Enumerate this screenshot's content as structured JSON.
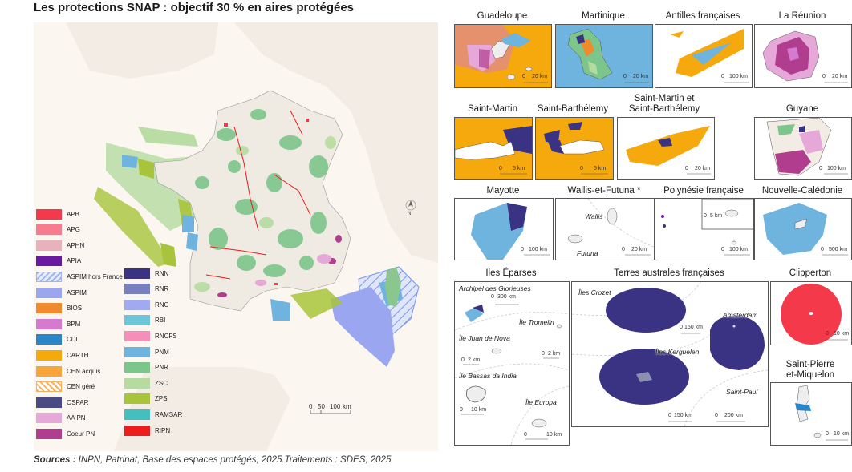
{
  "title": "Les protections SNAP : objectif 30 % en aires protégées",
  "sources": {
    "label": "Sources :",
    "text": "INPN, Patrinat, Base des espaces protégés, 2025.Traitements : SDES, 2025"
  },
  "main_map": {
    "north_label": "N",
    "scale": {
      "zero": "0",
      "mid": "50",
      "max": "100",
      "unit": "km"
    }
  },
  "legend": {
    "column1": [
      {
        "label": "APB",
        "color": "#f43a4a"
      },
      {
        "label": "APG",
        "color": "#f77d8e"
      },
      {
        "label": "APHN",
        "color": "#e7b2bb"
      },
      {
        "label": "APIA",
        "color": "#6a1aa0"
      },
      {
        "label": "ASPIM hors France",
        "color": "#9db4ee",
        "pattern": "hatch-blue"
      },
      {
        "label": "ASPIM",
        "color": "#9aa6f0"
      },
      {
        "label": "BIOS",
        "color": "#ef8a2e"
      },
      {
        "label": "BPM",
        "color": "#d57ad0"
      },
      {
        "label": "CDL",
        "color": "#2a86c8"
      },
      {
        "label": "CARTH",
        "color": "#f5a90d"
      },
      {
        "label": "CEN acquis",
        "color": "#f8a63c"
      },
      {
        "label": "CEN géré",
        "color": "#f8b060",
        "pattern": "hatch-orange"
      },
      {
        "label": "OSPAR",
        "color": "#4a4a84"
      },
      {
        "label": "AA PN",
        "color": "#e5a8d8"
      },
      {
        "label": "Coeur PN",
        "color": "#b03d8e"
      }
    ],
    "column2": [
      {
        "label": "RNN",
        "color": "#3a3384"
      },
      {
        "label": "RNR",
        "color": "#7880c0"
      },
      {
        "label": "RNC",
        "color": "#a1a9ef"
      },
      {
        "label": "RBI",
        "color": "#6cc6d8"
      },
      {
        "label": "RNCFS",
        "color": "#f58fba"
      },
      {
        "label": "PNM",
        "color": "#6fb4de"
      },
      {
        "label": "PNR",
        "color": "#7cc58b"
      },
      {
        "label": "ZSC",
        "color": "#b5dba0"
      },
      {
        "label": "ZPS",
        "color": "#a8c43a"
      },
      {
        "label": "RAMSAR",
        "color": "#43bfc0"
      },
      {
        "label": "RIPN",
        "color": "#ee1c1c"
      }
    ]
  },
  "insets": {
    "guadeloupe": {
      "title": "Guadeloupe",
      "scale_zero": "0",
      "scale_max": "20 km"
    },
    "martinique": {
      "title": "Martinique",
      "scale_zero": "0",
      "scale_max": "20 km"
    },
    "antilles": {
      "title": "Antilles françaises",
      "scale_zero": "0",
      "scale_max": "100 km"
    },
    "reunion": {
      "title": "La Réunion",
      "scale_zero": "0",
      "scale_max": "20 km"
    },
    "saint_martin": {
      "title": "Saint-Martin",
      "scale_zero": "0",
      "scale_max": "5 km"
    },
    "saint_barthelemy": {
      "title": "Saint-Barthélemy",
      "scale_zero": "0",
      "scale_max": "5 km"
    },
    "sm_sb": {
      "title_line1": "Saint-Martin et",
      "title_line2": "Saint-Barthélemy",
      "scale_zero": "0",
      "scale_max": "20 km"
    },
    "guyane": {
      "title": "Guyane",
      "scale_zero": "0",
      "scale_max": "100 km"
    },
    "mayotte": {
      "title": "Mayotte",
      "scale_zero": "0",
      "scale_max": "100 km"
    },
    "wallis": {
      "title": "Wallis-et-Futuna *",
      "label_wallis": "Wallis",
      "label_futuna": "Futuna",
      "scale_zero": "0",
      "scale_max": "20 km"
    },
    "polynesie": {
      "title": "Polynésie française",
      "scale_small_zero": "0",
      "scale_small_max": "5 km",
      "scale_zero": "0",
      "scale_max": "100 km"
    },
    "nouvelle_caledonie": {
      "title": "Nouvelle-Calédonie",
      "scale_zero": "0",
      "scale_max": "500 km"
    },
    "eparses": {
      "title": "Iles Éparses",
      "glorieuses": "Archipel des Glorieuses",
      "glorieuses_scale_zero": "0",
      "glorieuses_scale_max": "300 km",
      "tromelin": "Île Tromelin",
      "juan_de_nova": "Île Juan de Nova",
      "bassas": "Île Bassas da India",
      "europa": "Île Europa",
      "scale_2a_zero": "0",
      "scale_2a_max": "2 km",
      "scale_2b_zero": "0",
      "scale_2b_max": "2 km",
      "scale_10a_zero": "0",
      "scale_10a_max": "10 km",
      "scale_10b_zero": "0",
      "scale_10b_max": "10 km"
    },
    "taaf": {
      "title": "Terres australes françaises",
      "crozet": "Îles Crozet",
      "amsterdam": "Amsterdam",
      "kerguelen": "Îles Kerguelen",
      "saint_paul": "Saint-Paul",
      "scale_150a_zero": "0",
      "scale_150a_max": "150 km",
      "scale_150b_zero": "0",
      "scale_150b_max": "150 km",
      "scale_200_zero": "0",
      "scale_200_max": "200 km"
    },
    "clipperton": {
      "title": "Clipperton",
      "scale_zero": "0",
      "scale_max": "10 km"
    },
    "spm": {
      "title_line1": "Saint-Pierre",
      "title_line2": "et-Miquelon",
      "scale_zero": "0",
      "scale_max": "10 km"
    }
  }
}
